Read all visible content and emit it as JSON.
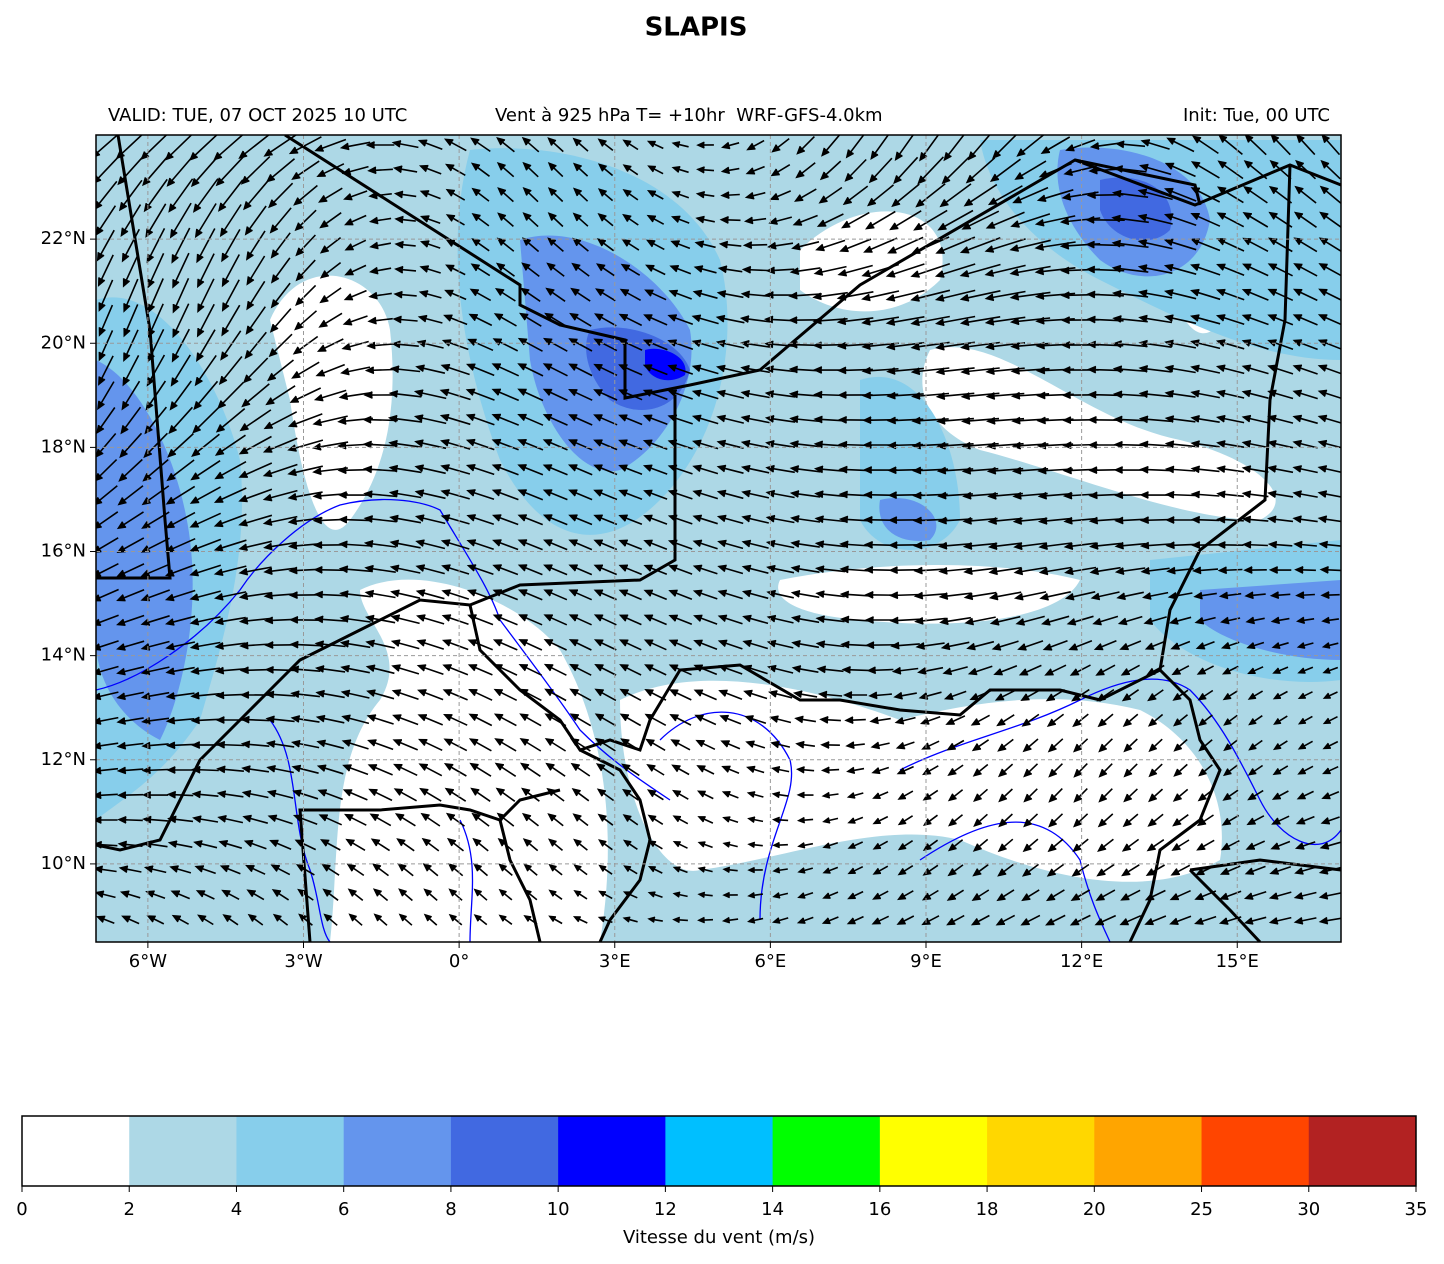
{
  "header": {
    "title": "SLAPIS",
    "valid": "VALID: TUE, 07 OCT 2025 10 UTC",
    "field": "Vent à 925 hPa T= +10hr  WRF-GFS-4.0km",
    "init": "Init: Tue, 00 UTC"
  },
  "map": {
    "xlim": [
      -7,
      17
    ],
    "ylim": [
      8.5,
      24
    ],
    "grid": true,
    "xticks": [
      {
        "value": -6,
        "label": "6°W"
      },
      {
        "value": -3,
        "label": "3°W"
      },
      {
        "value": 0,
        "label": "0°"
      },
      {
        "value": 3,
        "label": "3°E"
      },
      {
        "value": 6,
        "label": "6°E"
      },
      {
        "value": 9,
        "label": "9°E"
      },
      {
        "value": 12,
        "label": "12°E"
      },
      {
        "value": 15,
        "label": "15°E"
      }
    ],
    "yticks": [
      {
        "value": 10,
        "label": "10°N"
      },
      {
        "value": 12,
        "label": "12°N"
      },
      {
        "value": 14,
        "label": "14°N"
      },
      {
        "value": 16,
        "label": "16°N"
      },
      {
        "value": 18,
        "label": "18°N"
      },
      {
        "value": 20,
        "label": "20°N"
      },
      {
        "value": 22,
        "label": "22°N"
      }
    ]
  },
  "colorbar": {
    "label": "Vitesse du vent (m/s)",
    "bounds": [
      0,
      2,
      4,
      6,
      8,
      10,
      12,
      14,
      16,
      18,
      20,
      25,
      30,
      35
    ],
    "colors": [
      "#ffffff",
      "#add8e6",
      "#87ceeb",
      "#6495ed",
      "#4169e1",
      "#0000ff",
      "#00bfff",
      "#00ff00",
      "#ffff00",
      "#ffd700",
      "#ffa500",
      "#ff4500",
      "#b22222"
    ]
  }
}
